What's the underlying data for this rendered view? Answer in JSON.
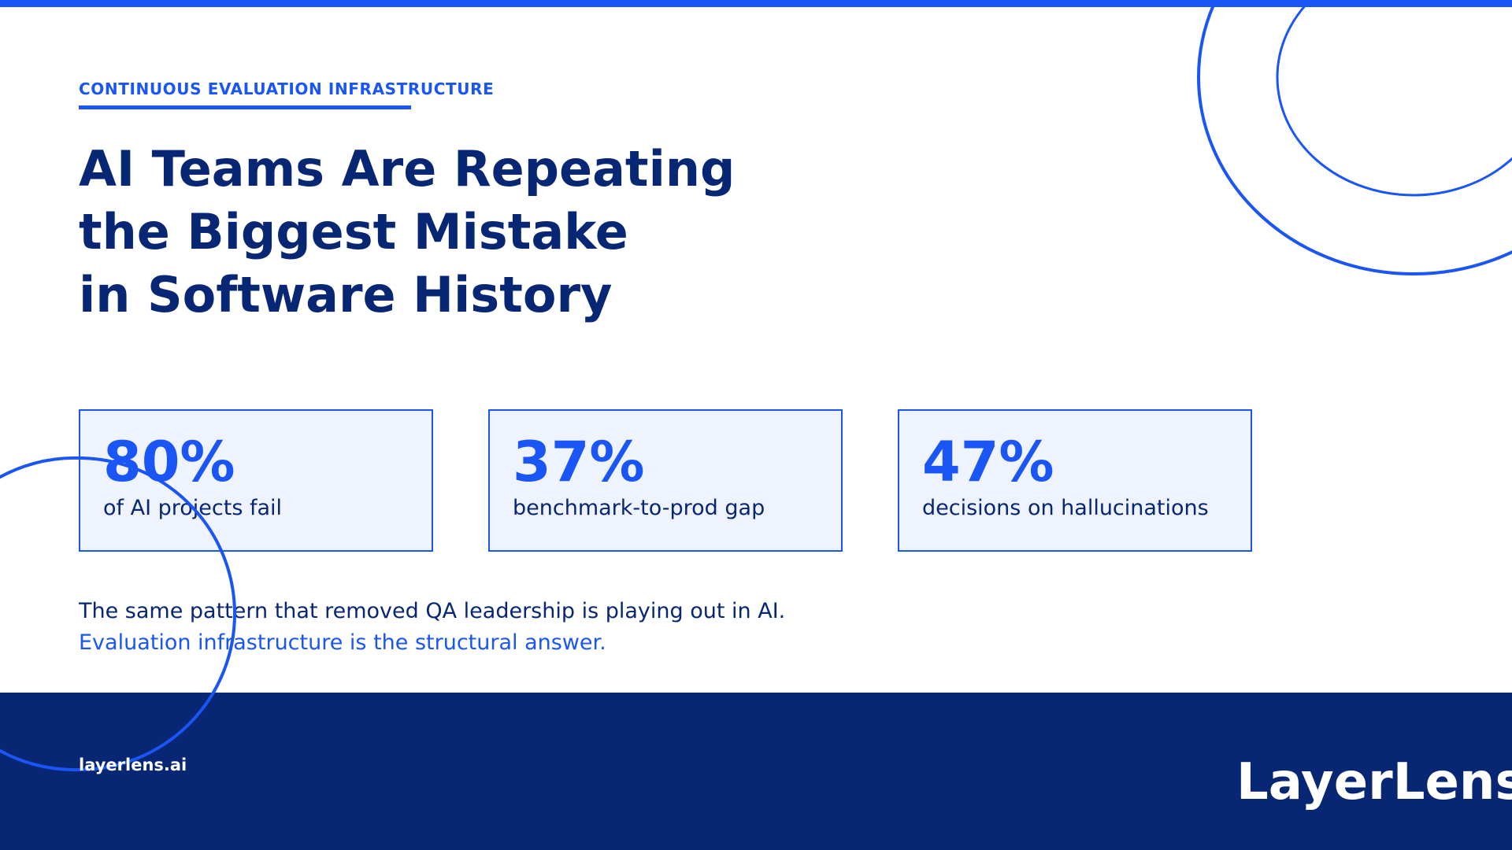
{
  "eyebrow": "CONTINUOUS EVALUATION INFRASTRUCTURE",
  "title_lines": [
    "AI Teams Are Repeating",
    "the Biggest Mistake",
    "in Software History"
  ],
  "stats": [
    {
      "value": "80%",
      "label": "of AI projects fail"
    },
    {
      "value": "37%",
      "label": "benchmark-to-prod gap"
    },
    {
      "value": "47%",
      "label": "decisions on hallucinations"
    }
  ],
  "body": {
    "line1": "The same pattern that removed QA leadership is playing out in AI.",
    "line2": "Evaluation infrastructure is the structural answer."
  },
  "footer": {
    "url": "layerlens.ai",
    "logo": "LayerLens"
  },
  "colors": {
    "accent": "#1a55f5",
    "navy": "#072673",
    "card_bg": "#eef3fe",
    "background": "#ffffff"
  }
}
